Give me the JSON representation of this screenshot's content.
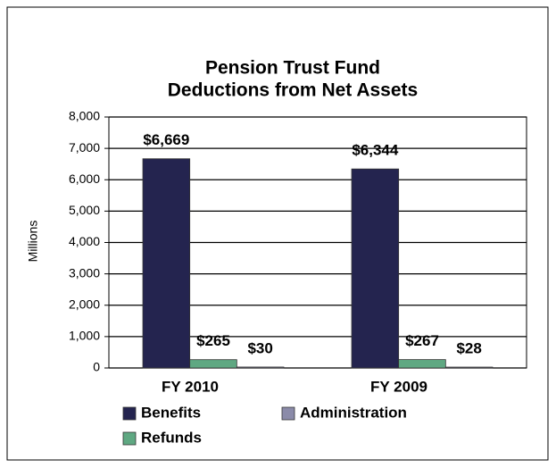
{
  "chart_data": {
    "type": "bar",
    "title": [
      "Pension Trust Fund",
      "Deductions from Net Assets"
    ],
    "y_label": "Millions",
    "categories": [
      "FY 2010",
      "FY 2009"
    ],
    "series": [
      {
        "name": "Benefits",
        "color": "#24244f",
        "values": [
          6669,
          6344
        ],
        "value_labels": [
          "$6,669",
          "$6,344"
        ]
      },
      {
        "name": "Refunds",
        "color": "#5fa882",
        "values": [
          265,
          267
        ],
        "value_labels": [
          "$265",
          "$267"
        ]
      },
      {
        "name": "Administration",
        "color": "#8b8ba9",
        "values": [
          30,
          28
        ],
        "value_labels": [
          "$30",
          "$28"
        ]
      }
    ],
    "ylim": [
      0,
      8000
    ],
    "yticks": [
      {
        "value": 0,
        "label": "0"
      },
      {
        "value": 1000,
        "label": "1,000"
      },
      {
        "value": 2000,
        "label": "2,000"
      },
      {
        "value": 3000,
        "label": "3,000"
      },
      {
        "value": 4000,
        "label": "4,000"
      },
      {
        "value": 5000,
        "label": "5,000"
      },
      {
        "value": 6000,
        "label": "6,000"
      },
      {
        "value": 7000,
        "label": "7,000"
      },
      {
        "value": 8000,
        "label": "8,000"
      }
    ],
    "grid": true
  }
}
